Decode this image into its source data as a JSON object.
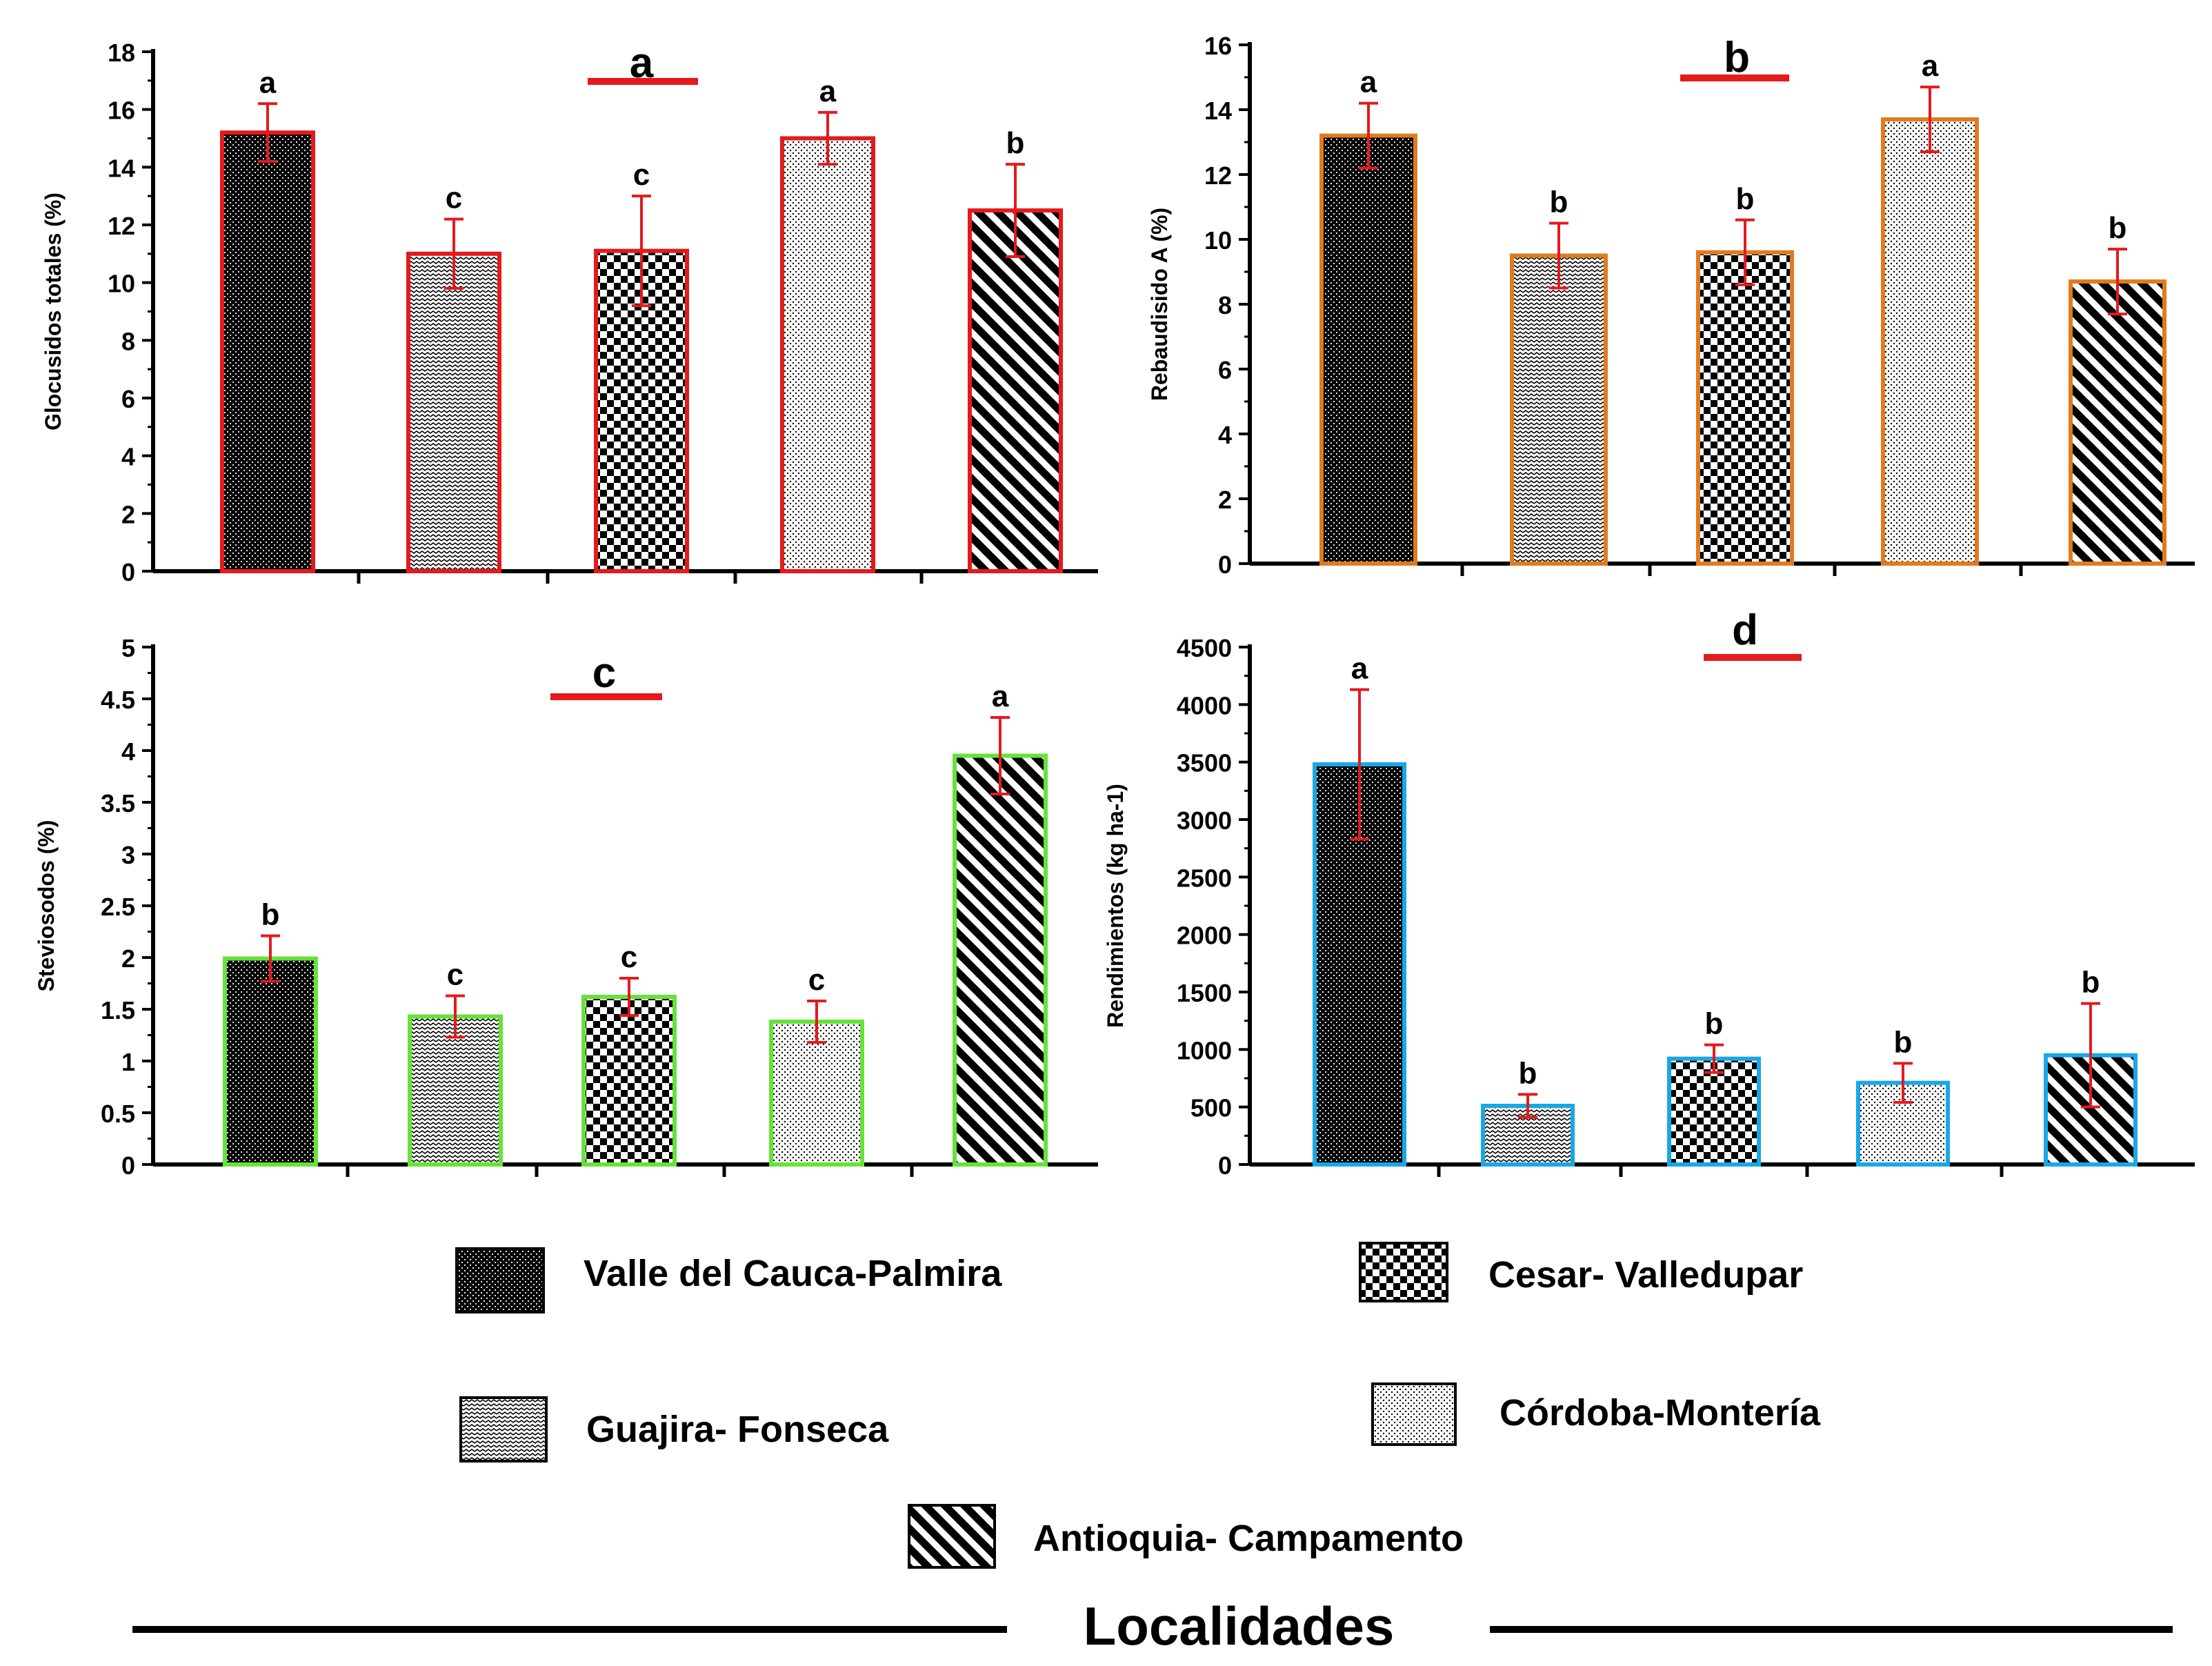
{
  "palette": {
    "bar_fill": "#ffffff",
    "pattern_ink": "#000000",
    "error_bar": "#e41a1c",
    "title_underline": "#e41a1c",
    "axis": "#000000",
    "text": "#000000"
  },
  "legend": {
    "items": [
      {
        "label": "Valle del Cauca-Palmira",
        "pattern": "dense-dots"
      },
      {
        "label": "Cesar- Valledupar",
        "pattern": "checker"
      },
      {
        "label": "Guajira- Fonseca",
        "pattern": "zigzag"
      },
      {
        "label": "Córdoba-Montería",
        "pattern": "light-dots"
      },
      {
        "label": "Antioquia- Campamento",
        "pattern": "diagonal-stripes"
      }
    ],
    "footer": "Localidades"
  },
  "chart_data": [
    {
      "type": "bar",
      "panel": "a",
      "title": "a",
      "ylabel": "Glocusidos  totales (%)",
      "ylim": [
        0,
        18
      ],
      "yticks": [
        0,
        2,
        4,
        6,
        8,
        10,
        12,
        14,
        16,
        18
      ],
      "border_color": "#e41a1c",
      "categories": [
        "Valle del Cauca-Palmira",
        "Guajira- Fonseca",
        "Cesar- Valledupar",
        "Córdoba-Montería",
        "Antioquia- Campamento"
      ],
      "patterns": [
        "dense-dots",
        "zigzag",
        "checker",
        "light-dots",
        "diagonal-stripes"
      ],
      "values": [
        15.2,
        11.0,
        11.1,
        15.0,
        12.5
      ],
      "errors": [
        1.0,
        1.2,
        1.9,
        0.9,
        1.6
      ],
      "letters": [
        "a",
        "c",
        "c",
        "a",
        "b"
      ]
    },
    {
      "type": "bar",
      "panel": "b",
      "title": "b",
      "ylabel": "Rebaudisido A (%)",
      "ylim": [
        0,
        16
      ],
      "yticks": [
        0,
        2,
        4,
        6,
        8,
        10,
        12,
        14,
        16
      ],
      "border_color": "#e07b1f",
      "categories": [
        "Valle del Cauca-Palmira",
        "Guajira- Fonseca",
        "Cesar- Valledupar",
        "Córdoba-Montería",
        "Antioquia- Campamento"
      ],
      "patterns": [
        "dense-dots",
        "zigzag",
        "checker",
        "light-dots",
        "diagonal-stripes"
      ],
      "values": [
        13.2,
        9.5,
        9.6,
        13.7,
        8.7
      ],
      "errors": [
        1.0,
        1.0,
        1.0,
        1.0,
        1.0
      ],
      "letters": [
        "a",
        "b",
        "b",
        "a",
        "b"
      ]
    },
    {
      "type": "bar",
      "panel": "c",
      "title": "c",
      "ylabel": "Steviosodos  (%)",
      "ylim": [
        0,
        5
      ],
      "yticks": [
        0,
        0.5,
        1,
        1.5,
        2,
        2.5,
        3,
        3.5,
        4,
        4.5,
        5
      ],
      "border_color": "#66e23a",
      "categories": [
        "Valle del Cauca-Palmira",
        "Guajira- Fonseca",
        "Cesar- Valledupar",
        "Córdoba-Montería",
        "Antioquia- Campamento"
      ],
      "patterns": [
        "dense-dots",
        "zigzag",
        "checker",
        "light-dots",
        "diagonal-stripes"
      ],
      "values": [
        1.99,
        1.43,
        1.62,
        1.38,
        3.95
      ],
      "errors": [
        0.22,
        0.2,
        0.18,
        0.2,
        0.37
      ],
      "letters": [
        "b",
        "c",
        "c",
        "c",
        "a"
      ]
    },
    {
      "type": "bar",
      "panel": "d",
      "title": "d",
      "ylabel": "Rendimientos  (kg ha-1)",
      "ylim": [
        0,
        4500
      ],
      "yticks": [
        0,
        500,
        1000,
        1500,
        2000,
        2500,
        3000,
        3500,
        4000,
        4500
      ],
      "border_color": "#1aa7e6",
      "categories": [
        "Valle del Cauca-Palmira",
        "Guajira- Fonseca",
        "Cesar- Valledupar",
        "Córdoba-Montería",
        "Antioquia- Campamento"
      ],
      "patterns": [
        "dense-dots",
        "zigzag",
        "checker",
        "light-dots",
        "diagonal-stripes"
      ],
      "values": [
        3480,
        510,
        920,
        710,
        950
      ],
      "errors": [
        650,
        100,
        120,
        170,
        450
      ],
      "letters": [
        "a",
        "b",
        "b",
        "b",
        "b"
      ]
    }
  ]
}
